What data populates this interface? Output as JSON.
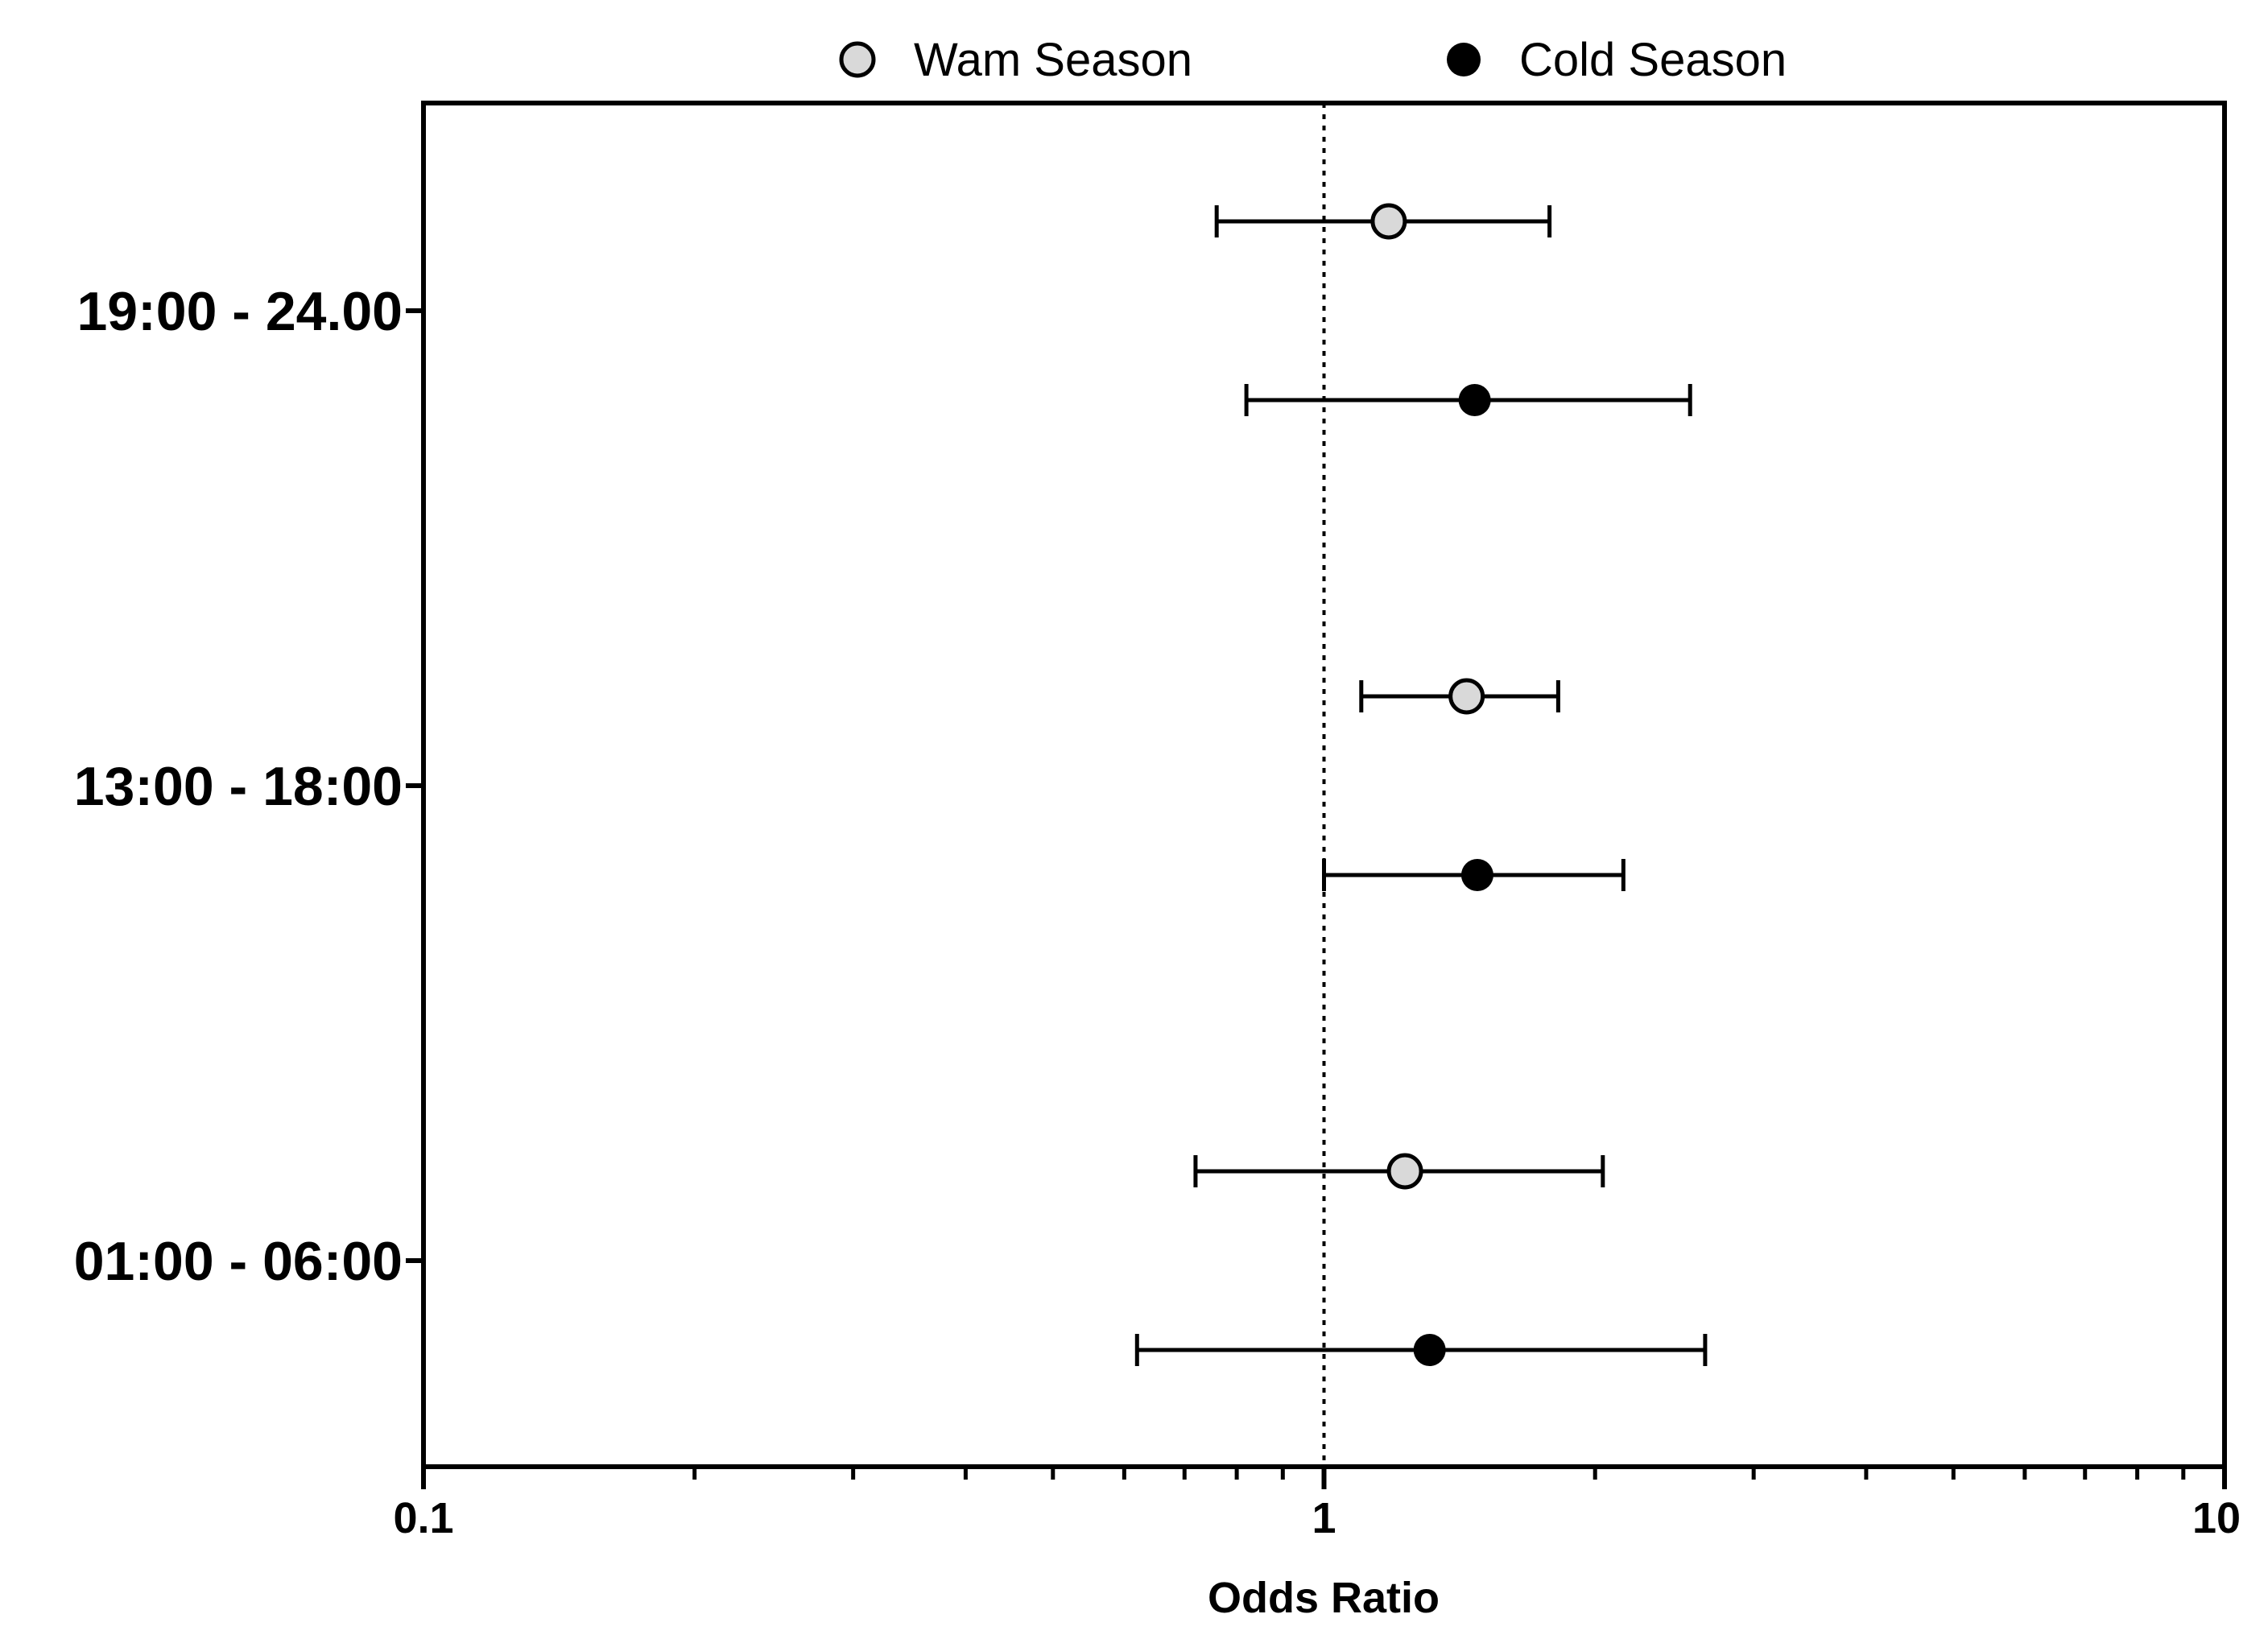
{
  "chart_data": {
    "type": "forest",
    "title": "",
    "xlabel": "Odds Ratio",
    "ylabel": "",
    "xscale": "log",
    "xlim": [
      0.1,
      10
    ],
    "x_ticks": [
      "0.1",
      "1",
      "10"
    ],
    "reference_line": 1,
    "legend_position": "top-center",
    "categories": [
      "19:00 - 24.00",
      "13:00 - 18:00",
      "01:00 - 06:00"
    ],
    "series": [
      {
        "name": "Wam Season",
        "marker": "open-circle",
        "color": "#d9d9d9",
        "points": [
          {
            "category": "19:00 - 24.00",
            "or": 1.18,
            "lower": 0.76,
            "upper": 1.78
          },
          {
            "category": "13:00 - 18:00",
            "or": 1.44,
            "lower": 1.1,
            "upper": 1.82
          },
          {
            "category": "01:00 - 06:00",
            "or": 1.23,
            "lower": 0.72,
            "upper": 2.04
          }
        ]
      },
      {
        "name": "Cold Season",
        "marker": "filled-circle",
        "color": "#000000",
        "points": [
          {
            "category": "19:00 - 24.00",
            "or": 1.47,
            "lower": 0.82,
            "upper": 2.55
          },
          {
            "category": "13:00 - 18:00",
            "or": 1.48,
            "lower": 1.0,
            "upper": 2.15
          },
          {
            "category": "01:00 - 06:00",
            "or": 1.31,
            "lower": 0.62,
            "upper": 2.65
          }
        ]
      }
    ]
  }
}
